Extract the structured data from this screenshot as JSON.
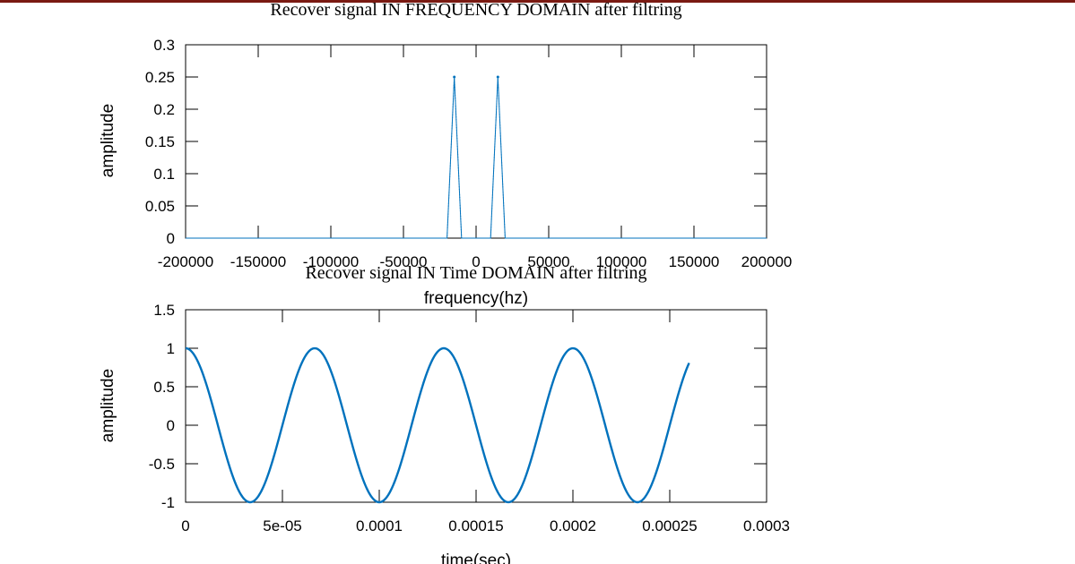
{
  "chart_data": [
    {
      "type": "line",
      "title": "Recover signal IN FREQUENCY DOMAIN after filtring",
      "xlabel": "frequency(hz)",
      "ylabel": "amplitude",
      "xlim": [
        -200000,
        200000
      ],
      "ylim": [
        0,
        0.3
      ],
      "xticks": [
        -200000,
        -150000,
        -100000,
        -50000,
        0,
        50000,
        100000,
        150000,
        200000
      ],
      "xtick_labels": [
        "-200000",
        "-150000",
        "-100000",
        "-50000",
        "0",
        "50000",
        "100000",
        "150000",
        "200000"
      ],
      "yticks": [
        0,
        0.05,
        0.1,
        0.15,
        0.2,
        0.25,
        0.3
      ],
      "ytick_labels": [
        "0",
        "0.05",
        "0.1",
        "0.15",
        "0.2",
        "0.25",
        "0.3"
      ],
      "grid": false,
      "color": "#0072bd",
      "series": [
        {
          "x": [
            -200000,
            -20000,
            -15000,
            -10000,
            10000,
            15000,
            20000,
            200000
          ],
          "y": [
            0,
            0,
            0.25,
            0,
            0,
            0.25,
            0,
            0
          ]
        }
      ]
    },
    {
      "type": "line",
      "title": "Recover signal IN Time DOMAIN after filtring",
      "xlabel": "time(sec)",
      "ylabel": "amplitude",
      "xlim": [
        0,
        0.0003
      ],
      "ylim": [
        -1,
        1.5
      ],
      "xticks": [
        0,
        5e-05,
        0.0001,
        0.00015,
        0.0002,
        0.00025,
        0.0003
      ],
      "xtick_labels": [
        "0",
        "5e-05",
        "0.0001",
        "0.00015",
        "0.0002",
        "0.00025",
        "0.0003"
      ],
      "yticks": [
        -1,
        -0.5,
        0,
        0.5,
        1,
        1.5
      ],
      "ytick_labels": [
        "-1",
        "-0.5",
        "0",
        "0.5",
        "1",
        "1.5"
      ],
      "grid": false,
      "color": "#0072bd",
      "series": [
        {
          "function": "cos(2*pi*15000*t)",
          "t_range": [
            0,
            0.00026
          ]
        }
      ]
    }
  ]
}
